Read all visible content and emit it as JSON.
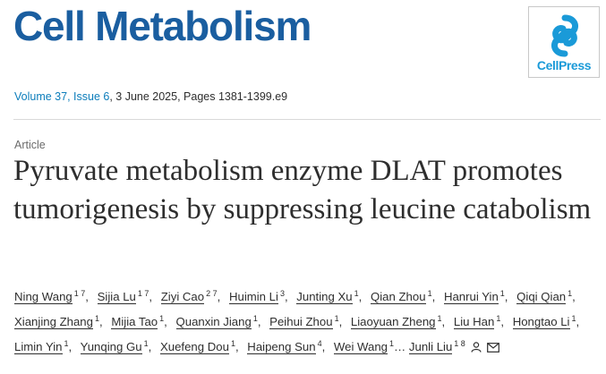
{
  "journal": {
    "title": "Cell Metabolism",
    "publisher_logo_text": "CellPress",
    "accent_color": "#1a5ea0",
    "logo_color": "#1a9ad8"
  },
  "citation": {
    "volume_issue": "Volume 37, Issue 6",
    "rest": ", 3 June 2025, Pages 1381-1399.e9"
  },
  "article": {
    "type": "Article",
    "title": "Pyruvate metabolism enzyme DLAT promotes tumorigenesis by suppressing leucine catabolism"
  },
  "authors": [
    {
      "name": "Ning Wang",
      "sup": "1 7"
    },
    {
      "name": "Sijia Lu",
      "sup": "1 7"
    },
    {
      "name": "Ziyi Cao",
      "sup": "2 7"
    },
    {
      "name": "Huimin Li",
      "sup": "3"
    },
    {
      "name": "Junting Xu",
      "sup": "1"
    },
    {
      "name": "Qian Zhou",
      "sup": "1"
    },
    {
      "name": "Hanrui Yin",
      "sup": "1"
    },
    {
      "name": "Qiqi Qian",
      "sup": "1"
    },
    {
      "name": "Xianjing Zhang",
      "sup": "1"
    },
    {
      "name": "Mijia Tao",
      "sup": "1"
    },
    {
      "name": "Quanxin Jiang",
      "sup": "1"
    },
    {
      "name": "Peihui Zhou",
      "sup": "1"
    },
    {
      "name": "Liaoyuan Zheng",
      "sup": "1"
    },
    {
      "name": "Liu Han",
      "sup": "1"
    },
    {
      "name": "Hongtao Li",
      "sup": "1"
    },
    {
      "name": "Limin Yin",
      "sup": "1"
    },
    {
      "name": "Yunqing Gu",
      "sup": "1"
    },
    {
      "name": "Xuefeng Dou",
      "sup": "1"
    },
    {
      "name": "Haipeng Sun",
      "sup": "4"
    },
    {
      "name": "Wei Wang",
      "sup": "1",
      "trailing": "…"
    },
    {
      "name": "Junli Liu",
      "sup": "1 8",
      "icons": [
        "person-icon",
        "envelope-icon"
      ]
    }
  ]
}
